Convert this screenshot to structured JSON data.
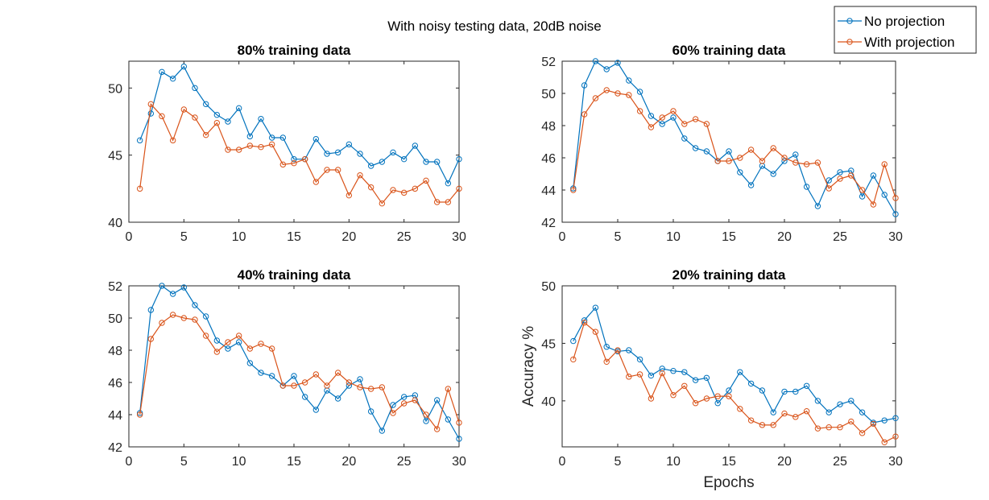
{
  "figure": {
    "suptitle": "With noisy testing data, 20dB noise",
    "legend": {
      "placement": "top-right",
      "entries": [
        {
          "name": "No projection",
          "color": "#0072BD"
        },
        {
          "name": "With projection",
          "color": "#D95319"
        }
      ]
    }
  },
  "chart_data": [
    {
      "type": "line",
      "title": "80% training data",
      "xlabel": "",
      "ylabel": "",
      "xlim": [
        0,
        30
      ],
      "ylim": [
        40,
        52
      ],
      "xticks": [
        0,
        5,
        10,
        15,
        20,
        25,
        30
      ],
      "yticks": [
        40,
        45,
        50
      ],
      "x": [
        1,
        2,
        3,
        4,
        5,
        6,
        7,
        8,
        9,
        10,
        11,
        12,
        13,
        14,
        15,
        16,
        17,
        18,
        19,
        20,
        21,
        22,
        23,
        24,
        25,
        26,
        27,
        28,
        29,
        30
      ],
      "series": [
        {
          "name": "No projection",
          "color": "#0072BD",
          "values": [
            46.1,
            48.1,
            51.2,
            50.7,
            51.6,
            50.0,
            48.8,
            48.0,
            47.5,
            48.5,
            46.4,
            47.7,
            46.3,
            46.3,
            44.7,
            44.7,
            46.2,
            45.1,
            45.2,
            45.8,
            45.1,
            44.2,
            44.5,
            45.2,
            44.7,
            45.7,
            44.5,
            44.5,
            42.9,
            44.7
          ]
        },
        {
          "name": "With projection",
          "color": "#D95319",
          "values": [
            42.5,
            48.8,
            47.9,
            46.1,
            48.4,
            47.8,
            46.5,
            47.4,
            45.4,
            45.4,
            45.7,
            45.6,
            45.8,
            44.3,
            44.4,
            44.7,
            43.0,
            43.9,
            43.9,
            42.0,
            43.5,
            42.6,
            41.4,
            42.4,
            42.2,
            42.5,
            43.1,
            41.5,
            41.5,
            42.5
          ]
        }
      ]
    },
    {
      "type": "line",
      "title": "60% training data",
      "xlabel": "",
      "ylabel": "",
      "xlim": [
        0,
        30
      ],
      "ylim": [
        42,
        52
      ],
      "xticks": [
        0,
        5,
        10,
        15,
        20,
        25,
        30
      ],
      "yticks": [
        42,
        44,
        46,
        48,
        50,
        52
      ],
      "x": [
        1,
        2,
        3,
        4,
        5,
        6,
        7,
        8,
        9,
        10,
        11,
        12,
        13,
        14,
        15,
        16,
        17,
        18,
        19,
        20,
        21,
        22,
        23,
        24,
        25,
        26,
        27,
        28,
        29,
        30
      ],
      "series": [
        {
          "name": "No projection",
          "color": "#0072BD",
          "values": [
            44.1,
            50.5,
            52.0,
            51.5,
            51.9,
            50.8,
            50.1,
            48.6,
            48.1,
            48.5,
            47.2,
            46.6,
            46.4,
            45.8,
            46.4,
            45.1,
            44.3,
            45.5,
            45.0,
            45.8,
            46.2,
            44.2,
            43.0,
            44.6,
            45.1,
            45.2,
            43.6,
            44.9,
            43.7,
            42.5
          ]
        },
        {
          "name": "With projection",
          "color": "#D95319",
          "values": [
            44.0,
            48.7,
            49.7,
            50.2,
            50.0,
            49.9,
            48.9,
            47.9,
            48.5,
            48.9,
            48.1,
            48.4,
            48.1,
            45.8,
            45.8,
            46.0,
            46.5,
            45.8,
            46.6,
            46.0,
            45.7,
            45.6,
            45.7,
            44.1,
            44.7,
            44.9,
            44.0,
            43.1,
            45.6,
            43.5
          ]
        }
      ]
    },
    {
      "type": "line",
      "title": "40% training data",
      "xlabel": "",
      "ylabel": "",
      "xlim": [
        0,
        30
      ],
      "ylim": [
        42,
        52
      ],
      "xticks": [
        0,
        5,
        10,
        15,
        20,
        25,
        30
      ],
      "yticks": [
        42,
        44,
        46,
        48,
        50,
        52
      ],
      "x": [
        1,
        2,
        3,
        4,
        5,
        6,
        7,
        8,
        9,
        10,
        11,
        12,
        13,
        14,
        15,
        16,
        17,
        18,
        19,
        20,
        21,
        22,
        23,
        24,
        25,
        26,
        27,
        28,
        29,
        30
      ],
      "series": [
        {
          "name": "No projection",
          "color": "#0072BD",
          "values": [
            44.1,
            50.5,
            52.0,
            51.5,
            51.9,
            50.8,
            50.1,
            48.6,
            48.1,
            48.5,
            47.2,
            46.6,
            46.4,
            45.8,
            46.4,
            45.1,
            44.3,
            45.5,
            45.0,
            45.8,
            46.2,
            44.2,
            43.0,
            44.6,
            45.1,
            45.2,
            43.6,
            44.9,
            43.7,
            42.5
          ]
        },
        {
          "name": "With projection",
          "color": "#D95319",
          "values": [
            44.0,
            48.7,
            49.7,
            50.2,
            50.0,
            49.9,
            48.9,
            47.9,
            48.5,
            48.9,
            48.1,
            48.4,
            48.1,
            45.8,
            45.8,
            46.0,
            46.5,
            45.8,
            46.6,
            46.0,
            45.7,
            45.6,
            45.7,
            44.1,
            44.7,
            44.9,
            44.0,
            43.1,
            45.6,
            43.5
          ]
        }
      ]
    },
    {
      "type": "line",
      "title": "20% training data",
      "xlabel": "Epochs",
      "ylabel": "Accuracy %",
      "xlim": [
        0,
        30
      ],
      "ylim": [
        36,
        50
      ],
      "xticks": [
        0,
        5,
        10,
        15,
        20,
        25,
        30
      ],
      "yticks": [
        40,
        45,
        50
      ],
      "x": [
        1,
        2,
        3,
        4,
        5,
        6,
        7,
        8,
        9,
        10,
        11,
        12,
        13,
        14,
        15,
        16,
        17,
        18,
        19,
        20,
        21,
        22,
        23,
        24,
        25,
        26,
        27,
        28,
        29,
        30
      ],
      "series": [
        {
          "name": "No projection",
          "color": "#0072BD",
          "values": [
            45.2,
            47.0,
            48.1,
            44.7,
            44.3,
            44.4,
            43.6,
            42.2,
            42.8,
            42.6,
            42.5,
            41.8,
            42.0,
            39.8,
            40.9,
            42.5,
            41.5,
            40.9,
            39.0,
            40.8,
            40.8,
            41.3,
            40.0,
            39.0,
            39.7,
            40.0,
            39.0,
            38.1,
            38.3,
            38.5
          ]
        },
        {
          "name": "With projection",
          "color": "#D95319",
          "values": [
            43.6,
            46.8,
            46.0,
            43.4,
            44.4,
            42.1,
            42.3,
            40.2,
            42.4,
            40.5,
            41.3,
            39.8,
            40.2,
            40.4,
            40.4,
            39.3,
            38.3,
            37.9,
            37.9,
            38.9,
            38.6,
            39.1,
            37.6,
            37.7,
            37.7,
            38.2,
            37.2,
            38.0,
            36.4,
            36.9
          ]
        }
      ]
    }
  ]
}
